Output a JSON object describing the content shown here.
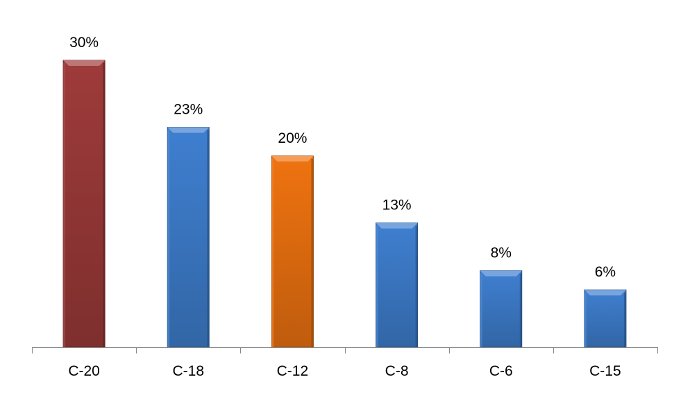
{
  "chart_data": {
    "type": "bar",
    "title": "",
    "xlabel": "",
    "ylabel": "",
    "categories": [
      "C-20",
      "C-18",
      "C-12",
      "C-8",
      "C-6",
      "C-15"
    ],
    "values": [
      30,
      23,
      20,
      13,
      8,
      6
    ],
    "data_labels": [
      "30%",
      "23%",
      "20%",
      "13%",
      "8%",
      "6%"
    ],
    "unit": "%",
    "bar_colors": [
      "#9e3b3a",
      "#3f7fd0",
      "#3f7fd0",
      "#3f7fd0",
      "#3f7fd0",
      "#3f7fd0"
    ],
    "bar_colors_note_colors": {
      "red": "#9e3b3a",
      "blue": "#3f7fd0",
      "orange": "#ef7310"
    },
    "highlight_colors": [
      "#9e3b3a",
      "#3f7fd0",
      "#ef7310",
      "#3f7fd0",
      "#3f7fd0",
      "#3f7fd0"
    ],
    "ylim": [
      0,
      30
    ],
    "grid": false,
    "y_axis_visible": false,
    "legend": "none"
  }
}
